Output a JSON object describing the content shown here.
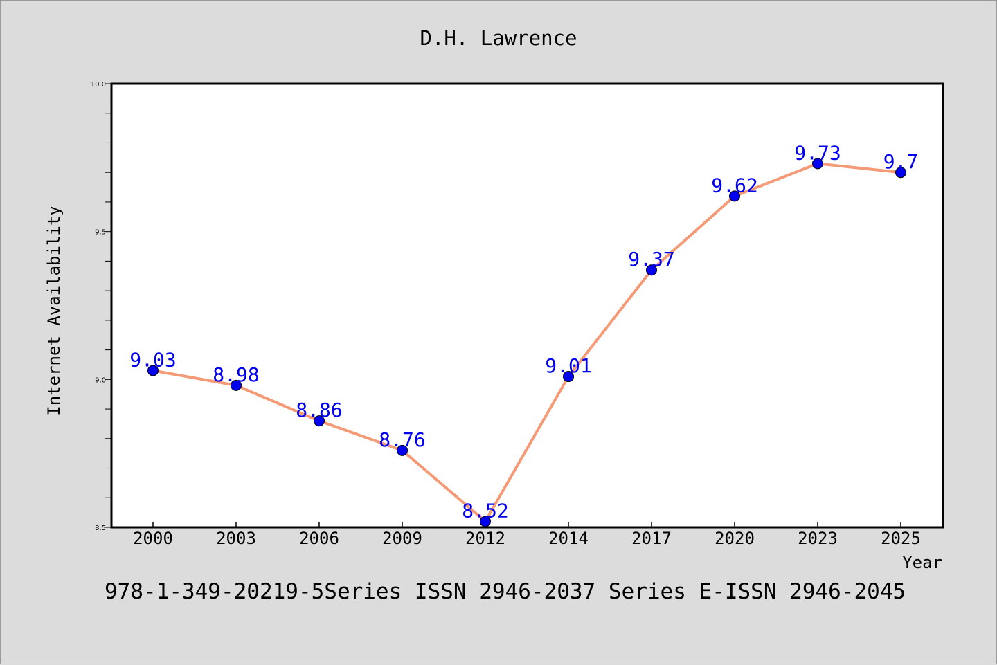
{
  "chart_data": {
    "type": "line",
    "title": "D.H. Lawrence",
    "xlabel": "Year",
    "ylabel": "Internet Availability",
    "categories": [
      "2000",
      "2003",
      "2006",
      "2009",
      "2012",
      "2014",
      "2017",
      "2020",
      "2023",
      "2025"
    ],
    "series": [
      {
        "values": [
          9.03,
          8.98,
          8.86,
          8.76,
          8.52,
          9.01,
          9.37,
          9.62,
          9.73,
          9.7
        ],
        "line_color": "#f59a76",
        "marker_color": "#0000ee",
        "label_color": "#0000ee"
      }
    ],
    "ylim": [
      8.5,
      10.0
    ],
    "yticks": [
      "8.5",
      "9.0",
      "9.5",
      "10.0"
    ],
    "grid": false,
    "footer": "978-1-349-20219-5Series ISSN 2946-2037 Series E-ISSN 2946-2045",
    "colors": {
      "background": "#dcdcdc",
      "plot_background": "#ffffff",
      "axis": "#000000"
    }
  }
}
